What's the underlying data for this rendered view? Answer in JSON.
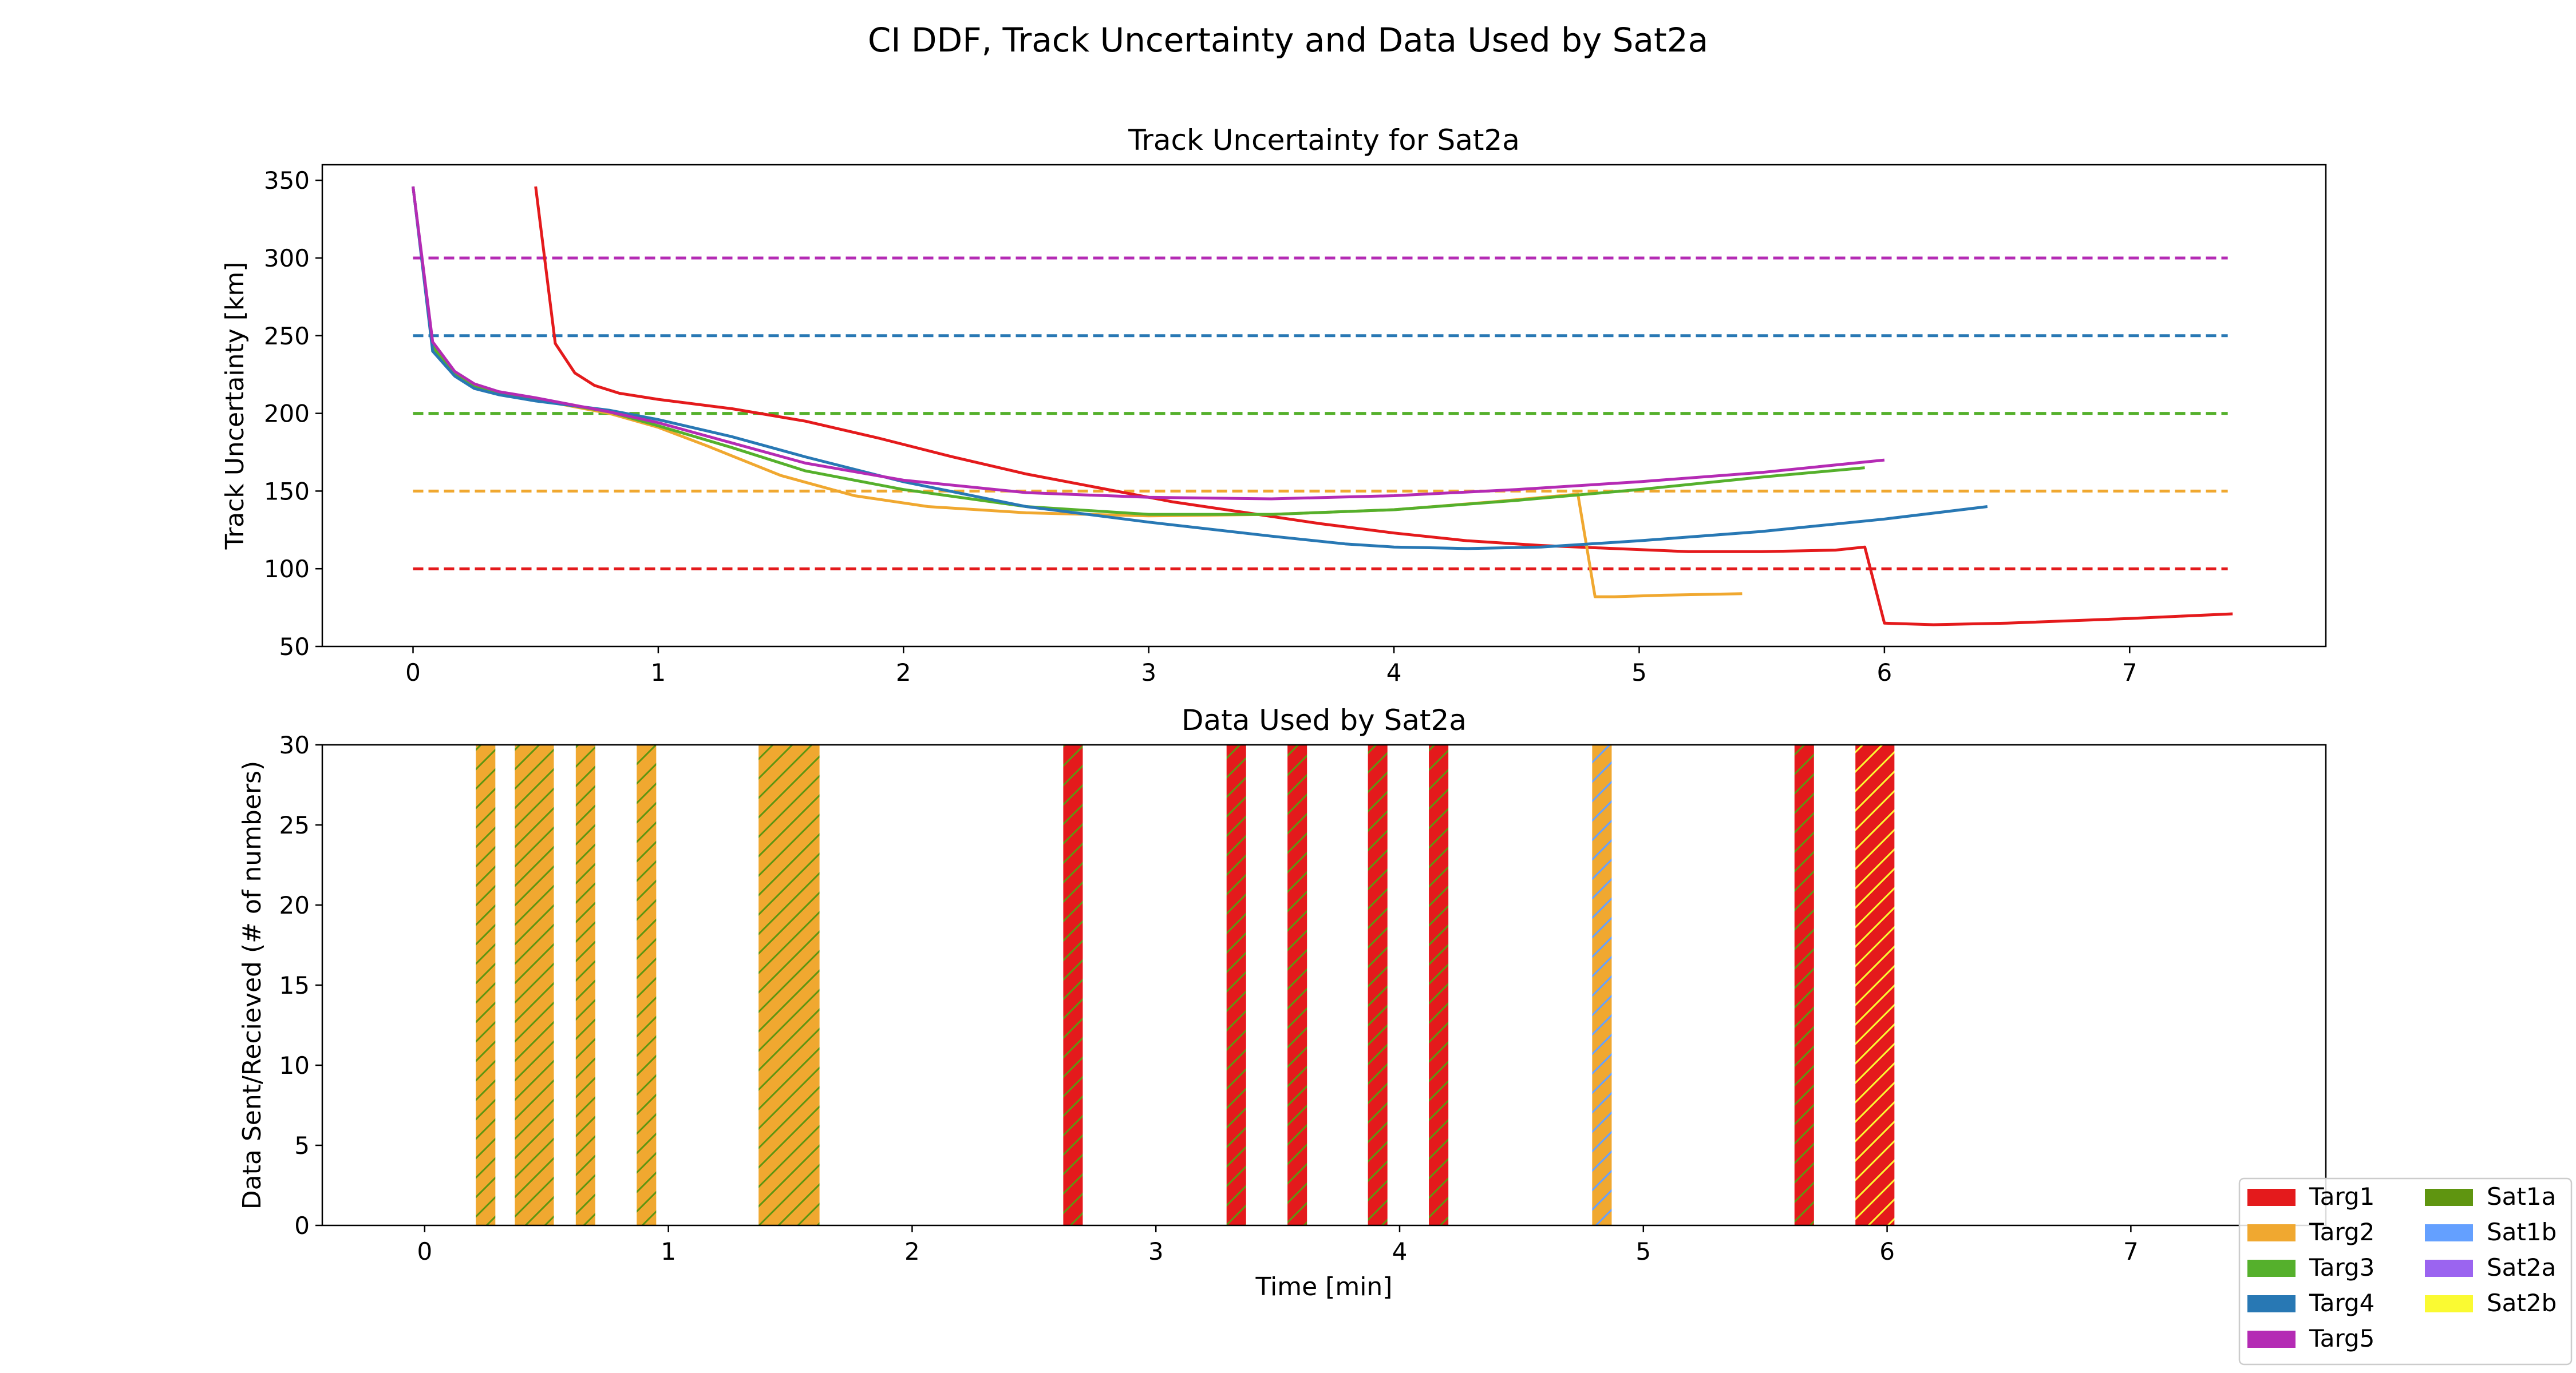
{
  "chart_data": [
    {
      "type": "line",
      "suptitle": "CI DDF, Track Uncertainty and Data Used by Sat2a",
      "title": "Track Uncertainty for Sat2a",
      "xlabel": "",
      "ylabel": "Track Uncertainty [km]",
      "xlim": [
        -0.37,
        7.8
      ],
      "ylim": [
        50,
        360
      ],
      "xticks": [
        "0",
        "1",
        "2",
        "3",
        "4",
        "5",
        "6",
        "7"
      ],
      "yticks": [
        "50",
        "100",
        "150",
        "200",
        "250",
        "300",
        "350"
      ],
      "grid": false,
      "thresholds": [
        {
          "target": "Targ1",
          "value": 100,
          "x": [
            0,
            7.4
          ]
        },
        {
          "target": "Targ2",
          "value": 150,
          "x": [
            0,
            7.4
          ]
        },
        {
          "target": "Targ3",
          "value": 200,
          "x": [
            0,
            7.4
          ]
        },
        {
          "target": "Targ4",
          "value": 250,
          "x": [
            0,
            7.4
          ]
        },
        {
          "target": "Targ5",
          "value": 300,
          "x": [
            0,
            7.4
          ]
        }
      ],
      "series": [
        {
          "target": "Targ1",
          "x": [
            0.5,
            0.58,
            0.66,
            0.74,
            0.84,
            1.0,
            1.3,
            1.6,
            1.9,
            2.2,
            2.5,
            2.8,
            3.1,
            3.4,
            3.7,
            4.0,
            4.3,
            4.6,
            4.9,
            5.2,
            5.5,
            5.8,
            5.92,
            6.0,
            6.2,
            6.5,
            7.0,
            7.42
          ],
          "y": [
            346,
            245,
            226,
            218,
            213,
            209,
            203,
            195,
            184,
            172,
            161,
            152,
            143,
            136,
            129,
            123,
            118,
            115,
            113,
            111,
            111,
            112,
            114,
            65,
            64,
            65,
            68,
            71
          ]
        },
        {
          "target": "Targ2",
          "x": [
            0.0,
            0.08,
            0.17,
            0.25,
            0.35,
            0.5,
            0.8,
            1.0,
            1.2,
            1.5,
            1.8,
            2.1,
            2.5,
            3.0,
            3.5,
            4.0,
            4.4,
            4.75,
            4.82,
            4.9,
            5.1,
            5.42
          ],
          "y": [
            346,
            243,
            225,
            217,
            213,
            209,
            200,
            191,
            179,
            160,
            147,
            140,
            136,
            134,
            135,
            138,
            143,
            148,
            82,
            82,
            83,
            84
          ]
        },
        {
          "target": "Targ3",
          "x": [
            0.0,
            0.08,
            0.17,
            0.25,
            0.35,
            0.5,
            0.8,
            1.0,
            1.3,
            1.6,
            2.0,
            2.5,
            3.0,
            3.5,
            4.0,
            4.5,
            5.0,
            5.5,
            5.92
          ],
          "y": [
            346,
            243,
            225,
            217,
            213,
            209,
            201,
            192,
            178,
            163,
            151,
            140,
            135,
            135,
            138,
            144,
            151,
            159,
            165
          ]
        },
        {
          "target": "Targ4",
          "x": [
            0.0,
            0.08,
            0.17,
            0.25,
            0.35,
            0.5,
            0.8,
            1.0,
            1.3,
            1.6,
            2.0,
            2.5,
            3.0,
            3.5,
            3.8,
            4.0,
            4.3,
            4.6,
            5.0,
            5.5,
            6.0,
            6.42
          ],
          "y": [
            346,
            240,
            224,
            216,
            212,
            208,
            202,
            196,
            185,
            172,
            156,
            140,
            130,
            121,
            116,
            114,
            113,
            114,
            118,
            124,
            132,
            140
          ]
        },
        {
          "target": "Targ5",
          "x": [
            0.0,
            0.08,
            0.17,
            0.25,
            0.35,
            0.5,
            0.8,
            1.0,
            1.3,
            1.6,
            2.0,
            2.5,
            3.0,
            3.5,
            4.0,
            4.5,
            5.0,
            5.5,
            6.0
          ],
          "y": [
            346,
            246,
            227,
            219,
            214,
            210,
            201,
            194,
            181,
            168,
            157,
            149,
            146,
            145,
            147,
            151,
            156,
            162,
            170
          ]
        }
      ]
    },
    {
      "type": "bar",
      "title": "Data Used by Sat2a",
      "xlabel": "Time [min]",
      "ylabel": "Data Sent/Recieved (# of numbers)",
      "xlim": [
        -0.42,
        7.8
      ],
      "ylim": [
        0,
        30
      ],
      "xticks": [
        "0",
        "1",
        "2",
        "3",
        "4",
        "5",
        "6",
        "7"
      ],
      "yticks": [
        "0",
        "5",
        "10",
        "15",
        "20",
        "25",
        "30"
      ],
      "grid": false,
      "bars": [
        {
          "start": 0.21,
          "end": 0.29,
          "value": 30,
          "target": "Targ2",
          "source": "Sat1a"
        },
        {
          "start": 0.37,
          "end": 0.53,
          "value": 30,
          "target": "Targ2",
          "source": "Sat1a"
        },
        {
          "start": 0.62,
          "end": 0.7,
          "value": 30,
          "target": "Targ2",
          "source": "Sat1a"
        },
        {
          "start": 0.87,
          "end": 0.95,
          "value": 30,
          "target": "Targ2",
          "source": "Sat1a"
        },
        {
          "start": 1.37,
          "end": 1.62,
          "value": 30,
          "target": "Targ2",
          "source": "Sat1a"
        },
        {
          "start": 2.62,
          "end": 2.7,
          "value": 30,
          "target": "Targ1",
          "source": "Sat1a"
        },
        {
          "start": 3.29,
          "end": 3.37,
          "value": 30,
          "target": "Targ1",
          "source": "Sat1a"
        },
        {
          "start": 3.54,
          "end": 3.62,
          "value": 30,
          "target": "Targ1",
          "source": "Sat1a"
        },
        {
          "start": 3.87,
          "end": 3.95,
          "value": 30,
          "target": "Targ1",
          "source": "Sat1a"
        },
        {
          "start": 4.12,
          "end": 4.2,
          "value": 30,
          "target": "Targ1",
          "source": "Sat1a"
        },
        {
          "start": 4.79,
          "end": 4.87,
          "value": 30,
          "target": "Targ2",
          "source": "Sat1b"
        },
        {
          "start": 5.62,
          "end": 5.7,
          "value": 30,
          "target": "Targ1",
          "source": "Sat1a"
        },
        {
          "start": 5.87,
          "end": 6.03,
          "value": 30,
          "target": "Targ1",
          "source": "Sat2b"
        }
      ]
    }
  ],
  "legend": {
    "placement": "bottom-right",
    "entries": [
      {
        "label": "Targ1",
        "color": "#e41a1c"
      },
      {
        "label": "Targ2",
        "color": "#f0a830"
      },
      {
        "label": "Targ3",
        "color": "#55b02c"
      },
      {
        "label": "Targ4",
        "color": "#2878b4"
      },
      {
        "label": "Targ5",
        "color": "#b42bb4"
      },
      {
        "label": "Sat1a",
        "color": "#5f9510"
      },
      {
        "label": "Sat1b",
        "color": "#64a0ff"
      },
      {
        "label": "Sat2a",
        "color": "#9b64f0"
      },
      {
        "label": "Sat2b",
        "color": "#fafa32"
      }
    ]
  }
}
